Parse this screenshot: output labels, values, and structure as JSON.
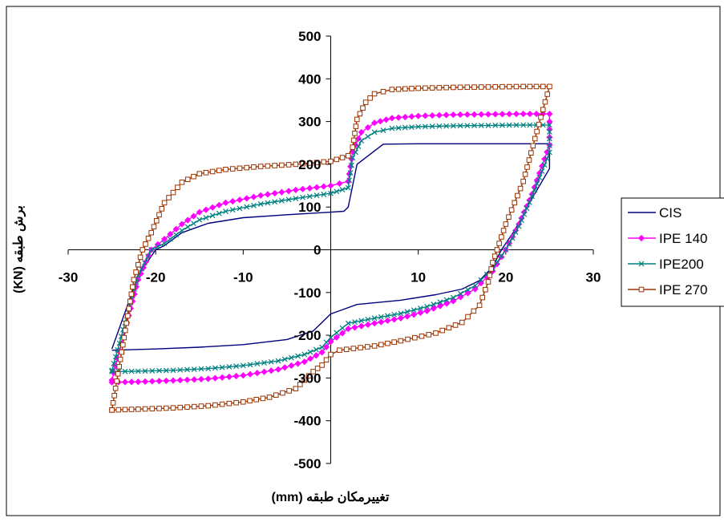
{
  "chart_data": {
    "type": "line",
    "title": "",
    "xlabel": "تغییرمکان طبقه (mm)",
    "ylabel": "برش طبقه (KN)",
    "xlim": [
      -30,
      30
    ],
    "ylim": [
      -500,
      500
    ],
    "x_ticks": [
      -30,
      -20,
      -10,
      0,
      10,
      20,
      30
    ],
    "y_ticks": [
      -500,
      -400,
      -300,
      -200,
      -100,
      0,
      100,
      200,
      300,
      400,
      500
    ],
    "grid": false,
    "legend_position": "right",
    "series": [
      {
        "name": "CIS",
        "color": "#000080",
        "marker": "none",
        "points": [
          [
            -25,
            -235
          ],
          [
            -20,
            -232
          ],
          [
            -15,
            -228
          ],
          [
            -10,
            -222
          ],
          [
            -5,
            -210
          ],
          [
            -2,
            -190
          ],
          [
            0,
            -150
          ],
          [
            3,
            -128
          ],
          [
            8,
            -118
          ],
          [
            12,
            -105
          ],
          [
            15,
            -92
          ],
          [
            17,
            -72
          ],
          [
            18.5,
            -40
          ],
          [
            19.5,
            0
          ],
          [
            21,
            45
          ],
          [
            23,
            120
          ],
          [
            25,
            190
          ],
          [
            25,
            248
          ],
          [
            20,
            248
          ],
          [
            15,
            248
          ],
          [
            10,
            248
          ],
          [
            6,
            247
          ],
          [
            3,
            200
          ],
          [
            2,
            100
          ],
          [
            1.5,
            90
          ],
          [
            0,
            88
          ],
          [
            -5,
            82
          ],
          [
            -10,
            75
          ],
          [
            -14,
            62
          ],
          [
            -17,
            40
          ],
          [
            -19,
            10
          ],
          [
            -20,
            0
          ],
          [
            -22,
            -60
          ],
          [
            -25,
            -232
          ]
        ]
      },
      {
        "name": "IPE 140",
        "color": "#ff00ff",
        "marker": "diamond",
        "points": [
          [
            -25,
            -310
          ],
          [
            -22,
            -309
          ],
          [
            -18,
            -306
          ],
          [
            -14,
            -302
          ],
          [
            -10,
            -294
          ],
          [
            -6,
            -280
          ],
          [
            -3,
            -262
          ],
          [
            -1,
            -240
          ],
          [
            0,
            -215
          ],
          [
            2,
            -185
          ],
          [
            5,
            -172
          ],
          [
            8,
            -160
          ],
          [
            11,
            -143
          ],
          [
            14,
            -120
          ],
          [
            16.5,
            -92
          ],
          [
            18.5,
            -50
          ],
          [
            20,
            0
          ],
          [
            21.5,
            60
          ],
          [
            23,
            130
          ],
          [
            25,
            245
          ],
          [
            25,
            318
          ],
          [
            22,
            318
          ],
          [
            18,
            317
          ],
          [
            14,
            316
          ],
          [
            10,
            313
          ],
          [
            7,
            308
          ],
          [
            5,
            297
          ],
          [
            3.5,
            275
          ],
          [
            2.5,
            230
          ],
          [
            2,
            160
          ],
          [
            0,
            150
          ],
          [
            -4,
            140
          ],
          [
            -8,
            127
          ],
          [
            -12,
            110
          ],
          [
            -15,
            88
          ],
          [
            -17,
            60
          ],
          [
            -19,
            25
          ],
          [
            -20.5,
            0
          ],
          [
            -22,
            -70
          ],
          [
            -25,
            -305
          ]
        ]
      },
      {
        "name": "IPE200",
        "color": "#008080",
        "marker": "x",
        "points": [
          [
            -25,
            -285
          ],
          [
            -22,
            -284
          ],
          [
            -18,
            -282
          ],
          [
            -14,
            -278
          ],
          [
            -10,
            -271
          ],
          [
            -6,
            -260
          ],
          [
            -3,
            -245
          ],
          [
            -1,
            -228
          ],
          [
            0,
            -205
          ],
          [
            2,
            -172
          ],
          [
            5,
            -160
          ],
          [
            8,
            -149
          ],
          [
            11,
            -133
          ],
          [
            14,
            -112
          ],
          [
            16.5,
            -84
          ],
          [
            18.5,
            -44
          ],
          [
            20,
            0
          ],
          [
            21.5,
            55
          ],
          [
            23,
            125
          ],
          [
            25,
            228
          ],
          [
            25,
            292
          ],
          [
            22,
            292
          ],
          [
            18,
            291
          ],
          [
            14,
            290
          ],
          [
            10,
            288
          ],
          [
            7,
            284
          ],
          [
            5,
            275
          ],
          [
            3.5,
            255
          ],
          [
            2.5,
            215
          ],
          [
            2,
            145
          ],
          [
            0,
            132
          ],
          [
            -4,
            120
          ],
          [
            -8,
            107
          ],
          [
            -12,
            90
          ],
          [
            -15,
            70
          ],
          [
            -17,
            45
          ],
          [
            -19,
            15
          ],
          [
            -20.5,
            0
          ],
          [
            -22,
            -60
          ],
          [
            -25,
            -282
          ]
        ]
      },
      {
        "name": "IPE 270",
        "color": "#993300",
        "marker": "square",
        "points": [
          [
            -25,
            -375
          ],
          [
            -22,
            -373
          ],
          [
            -18,
            -370
          ],
          [
            -14,
            -365
          ],
          [
            -10,
            -356
          ],
          [
            -7,
            -345
          ],
          [
            -4,
            -325
          ],
          [
            -3,
            -305
          ],
          [
            -2,
            -285
          ],
          [
            -1,
            -270
          ],
          [
            0,
            -245
          ],
          [
            1,
            -235
          ],
          [
            5,
            -225
          ],
          [
            8,
            -213
          ],
          [
            12,
            -195
          ],
          [
            15,
            -170
          ],
          [
            17,
            -130
          ],
          [
            18,
            -75
          ],
          [
            18.5,
            -30
          ],
          [
            19,
            0
          ],
          [
            20,
            60
          ],
          [
            22,
            160
          ],
          [
            24,
            310
          ],
          [
            25,
            382
          ],
          [
            22,
            382
          ],
          [
            18,
            381
          ],
          [
            14,
            380
          ],
          [
            10,
            378
          ],
          [
            7,
            375
          ],
          [
            5,
            365
          ],
          [
            4,
            345
          ],
          [
            3,
            305
          ],
          [
            2.5,
            240
          ],
          [
            2,
            220
          ],
          [
            0,
            207
          ],
          [
            -4,
            200
          ],
          [
            -8,
            195
          ],
          [
            -12,
            188
          ],
          [
            -15,
            178
          ],
          [
            -17,
            158
          ],
          [
            -19,
            110
          ],
          [
            -20.5,
            40
          ],
          [
            -21.5,
            0
          ],
          [
            -22.5,
            -70
          ],
          [
            -25,
            -375
          ]
        ]
      }
    ]
  }
}
